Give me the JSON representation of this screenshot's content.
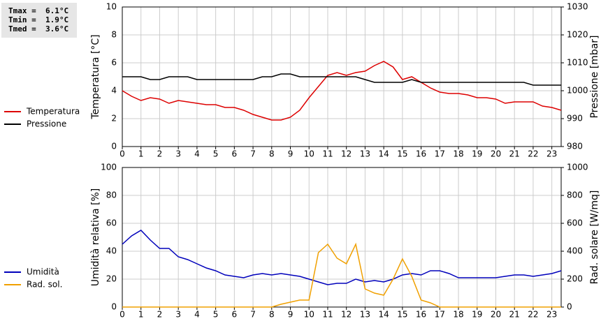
{
  "chart_data": [
    {
      "type": "line",
      "annotations": [
        "Tmax =  6.1°C",
        "Tmin =  1.9°C",
        "Tmed =  3.6°C"
      ],
      "y_label": "Temperatura [°C]",
      "y2_label": "Pressione [mbar]",
      "x": [
        0,
        0.5,
        1,
        1.5,
        2,
        2.5,
        3,
        3.5,
        4,
        4.5,
        5,
        5.5,
        6,
        6.5,
        7,
        7.5,
        8,
        8.5,
        9,
        9.5,
        10,
        10.5,
        11,
        11.5,
        12,
        12.5,
        13,
        13.5,
        14,
        14.5,
        15,
        15.5,
        16,
        16.5,
        17,
        17.5,
        18,
        18.5,
        19,
        19.5,
        20,
        20.5,
        21,
        21.5,
        22,
        22.5,
        23,
        23.5
      ],
      "xlim": [
        0,
        23.5
      ],
      "xticks": [
        0,
        1,
        2,
        3,
        4,
        5,
        6,
        7,
        8,
        9,
        10,
        11,
        12,
        13,
        14,
        15,
        16,
        17,
        18,
        19,
        20,
        21,
        22,
        23
      ],
      "ylim": [
        0,
        10
      ],
      "yticks": [
        0,
        2,
        4,
        6,
        8,
        10
      ],
      "y2lim": [
        980,
        1030
      ],
      "y2ticks": [
        980,
        990,
        1000,
        1010,
        1020,
        1030
      ],
      "grid": true,
      "series": [
        {
          "name": "Temperatura",
          "color": "#dd0000",
          "values": [
            4.0,
            3.6,
            3.3,
            3.5,
            3.4,
            3.1,
            3.3,
            3.2,
            3.1,
            3.0,
            3.0,
            2.8,
            2.8,
            2.6,
            2.3,
            2.1,
            1.9,
            1.9,
            2.1,
            2.6,
            3.5,
            4.3,
            5.1,
            5.3,
            5.1,
            5.3,
            5.4,
            5.8,
            6.1,
            5.7,
            4.8,
            5.0,
            4.6,
            4.2,
            3.9,
            3.8,
            3.8,
            3.7,
            3.5,
            3.5,
            3.4,
            3.1,
            3.2,
            3.2,
            3.2,
            2.9,
            2.8,
            2.6
          ]
        },
        {
          "name": "Pressione",
          "color": "#000000",
          "axis": "y2",
          "values": [
            1005,
            1005,
            1005,
            1004,
            1004,
            1005,
            1005,
            1005,
            1004,
            1004,
            1004,
            1004,
            1004,
            1004,
            1004,
            1005,
            1005,
            1006,
            1006,
            1005,
            1005,
            1005,
            1005,
            1005,
            1005,
            1005,
            1004,
            1003,
            1003,
            1003,
            1003,
            1004,
            1003,
            1003,
            1003,
            1003,
            1003,
            1003,
            1003,
            1003,
            1003,
            1003,
            1003,
            1003,
            1002,
            1002,
            1002,
            1002
          ]
        }
      ]
    },
    {
      "type": "line",
      "y_label": "Umidità relativa [%]",
      "y2_label": "Rad. solare [W/mq]",
      "x": [
        0,
        0.5,
        1,
        1.5,
        2,
        2.5,
        3,
        3.5,
        4,
        4.5,
        5,
        5.5,
        6,
        6.5,
        7,
        7.5,
        8,
        8.5,
        9,
        9.5,
        10,
        10.5,
        11,
        11.5,
        12,
        12.5,
        13,
        13.5,
        14,
        14.5,
        15,
        15.5,
        16,
        16.5,
        17,
        17.5,
        18,
        18.5,
        19,
        19.5,
        20,
        20.5,
        21,
        21.5,
        22,
        22.5,
        23,
        23.5
      ],
      "xlim": [
        0,
        23.5
      ],
      "xticks": [
        0,
        1,
        2,
        3,
        4,
        5,
        6,
        7,
        8,
        9,
        10,
        11,
        12,
        13,
        14,
        15,
        16,
        17,
        18,
        19,
        20,
        21,
        22,
        23
      ],
      "ylim": [
        0,
        100
      ],
      "yticks": [
        0,
        20,
        40,
        60,
        80,
        100
      ],
      "y2lim": [
        0,
        1000
      ],
      "y2ticks": [
        0,
        200,
        400,
        600,
        800,
        1000
      ],
      "grid": true,
      "series": [
        {
          "name": "Umidità",
          "color": "#0000bb",
          "values": [
            45,
            51,
            55,
            48,
            42,
            42,
            36,
            34,
            31,
            28,
            26,
            23,
            22,
            21,
            23,
            24,
            23,
            24,
            23,
            22,
            20,
            18,
            16,
            17,
            17,
            20,
            18,
            19,
            18,
            20,
            23,
            24,
            23,
            26,
            26,
            24,
            21,
            21,
            21,
            21,
            21,
            22,
            23,
            23,
            22,
            23,
            24,
            26
          ]
        },
        {
          "name": "Rad. sol.",
          "color": "#f0a000",
          "axis": "y2",
          "values": [
            0,
            0,
            0,
            0,
            0,
            0,
            0,
            0,
            0,
            0,
            0,
            0,
            0,
            0,
            0,
            0,
            0,
            20,
            35,
            50,
            50,
            390,
            450,
            350,
            310,
            450,
            130,
            100,
            85,
            200,
            345,
            220,
            50,
            30,
            0,
            0,
            0,
            0,
            0,
            0,
            0,
            0,
            0,
            0,
            0,
            0,
            0,
            0
          ]
        }
      ]
    }
  ]
}
